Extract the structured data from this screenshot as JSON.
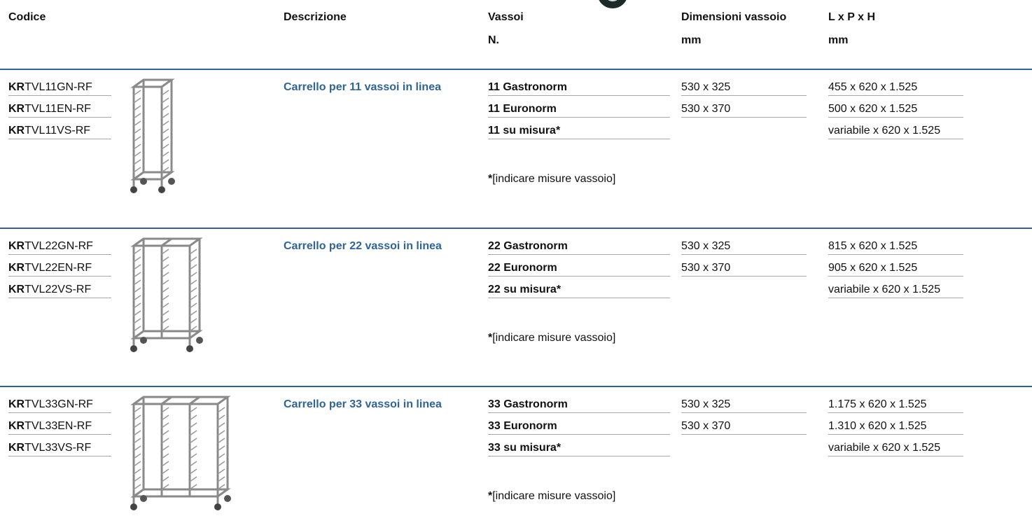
{
  "header": {
    "codice": "Codice",
    "descrizione": "Descrizione",
    "vassoi": [
      "Vassoi",
      "N."
    ],
    "dimensioni": [
      "Dimensioni vassoio",
      "mm"
    ],
    "lph": [
      "L x P x H",
      "mm"
    ]
  },
  "groups": [
    {
      "codes": [
        {
          "prefix": "KR",
          "suffix": "TVL11GN-RF"
        },
        {
          "prefix": "KR",
          "suffix": "TVL11EN-RF"
        },
        {
          "prefix": "KR",
          "suffix": "TVL11VS-RF"
        }
      ],
      "description": "Carrello per 11 vassoi in linea",
      "trays": [
        "11 Gastronorm",
        "11 Euronorm",
        "11 su misura*"
      ],
      "note": {
        "mark": "*",
        "text": "[indicare misure vassoio]"
      },
      "tray_sizes": [
        "530 x 325",
        "530 x 370"
      ],
      "dimensions": [
        "455 x 620 x 1.525",
        "500 x 620 x 1.525",
        "variabile x 620 x 1.525"
      ]
    },
    {
      "codes": [
        {
          "prefix": "KR",
          "suffix": "TVL22GN-RF"
        },
        {
          "prefix": "KR",
          "suffix": "TVL22EN-RF"
        },
        {
          "prefix": "KR",
          "suffix": "TVL22VS-RF"
        }
      ],
      "description": "Carrello per 22 vassoi in linea",
      "trays": [
        "22 Gastronorm",
        "22 Euronorm",
        "22 su misura*"
      ],
      "note": {
        "mark": "*",
        "text": "[indicare misure vassoio]"
      },
      "tray_sizes": [
        "530 x 325",
        "530 x 370"
      ],
      "dimensions": [
        "815 x 620 x 1.525",
        "905 x 620 x 1.525",
        "variabile x 620 x 1.525"
      ]
    },
    {
      "codes": [
        {
          "prefix": "KR",
          "suffix": "TVL33GN-RF"
        },
        {
          "prefix": "KR",
          "suffix": "TVL33EN-RF"
        },
        {
          "prefix": "KR",
          "suffix": "TVL33VS-RF"
        }
      ],
      "description": "Carrello per 33 vassoi in linea",
      "trays": [
        "33 Gastronorm",
        "33 Euronorm",
        "33 su misura*"
      ],
      "note": {
        "mark": "*",
        "text": "[indicare misure vassoio]"
      },
      "tray_sizes": [
        "530 x 325",
        "530 x 370"
      ],
      "dimensions": [
        "1.175 x 620 x 1.525",
        "1.310 x 620 x 1.525",
        "variabile x 620 x 1.525"
      ]
    }
  ]
}
